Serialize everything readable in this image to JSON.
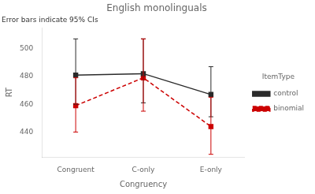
{
  "chart_data": {
    "type": "line",
    "title": "English monolinguals",
    "annotation": "Error bars indicate 95% CIs",
    "xlabel": "Congruency",
    "ylabel": "RT",
    "categories": [
      "Congruent",
      "C-only",
      "E-only"
    ],
    "series": [
      {
        "name": "control",
        "color": "#2b2b2b",
        "line_style": "solid",
        "marker": "square",
        "values": [
          481,
          482,
          467
        ],
        "lower": [
          460,
          461,
          451
        ],
        "upper": [
          507,
          507,
          487
        ]
      },
      {
        "name": "binomial",
        "color": "#cc0000",
        "line_style": "dashed",
        "marker": "square",
        "values": [
          459,
          479,
          444
        ],
        "lower": [
          440,
          455,
          424
        ],
        "upper": [
          479,
          507,
          465
        ]
      }
    ],
    "ylim": [
      422,
      515
    ],
    "yticks": [
      440,
      460,
      480,
      500
    ],
    "legend": "right",
    "legend_title": "ItemType",
    "grid": false
  }
}
